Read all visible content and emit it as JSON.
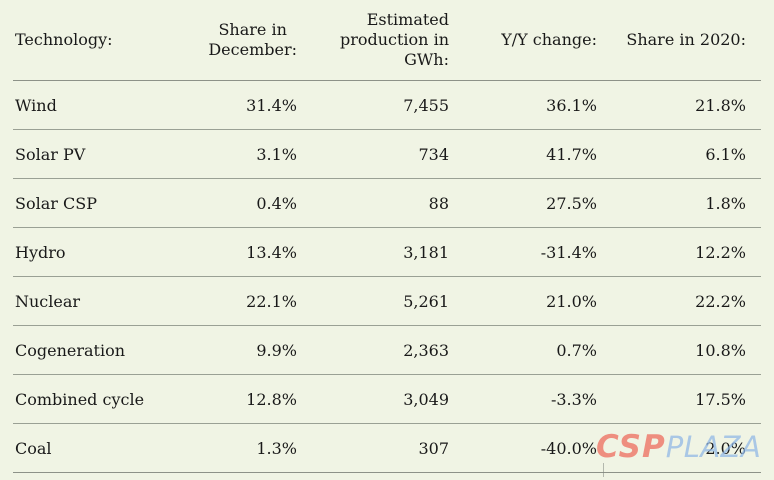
{
  "colors": {
    "background": "#f0f4e4",
    "text": "#191919",
    "header_rule": "#8d9288",
    "row_rule": "#9aa094",
    "watermark_csp": "#ee8072",
    "watermark_plaza": "#8fb6e6"
  },
  "table": {
    "columns": [
      {
        "name": "technology",
        "lines": [
          "Technology:"
        ]
      },
      {
        "name": "share_in_december",
        "lines": [
          "Share in",
          "December:"
        ]
      },
      {
        "name": "estimated_production_gwh",
        "lines": [
          "Estimated",
          "production in",
          "GWh:"
        ]
      },
      {
        "name": "yy_change",
        "lines": [
          "Y/Y change:"
        ]
      },
      {
        "name": "share_in_2020",
        "lines": [
          "Share in 2020:"
        ]
      }
    ],
    "rows": [
      {
        "cells": [
          "Wind",
          "31.4%",
          "7,455",
          "36.1%",
          "21.8%"
        ]
      },
      {
        "cells": [
          "Solar PV",
          "3.1%",
          "734",
          "41.7%",
          "6.1%"
        ]
      },
      {
        "cells": [
          "Solar CSP",
          "0.4%",
          "88",
          "27.5%",
          "1.8%"
        ]
      },
      {
        "cells": [
          "Hydro",
          "13.4%",
          "3,181",
          "-31.4%",
          "12.2%"
        ]
      },
      {
        "cells": [
          "Nuclear",
          "22.1%",
          "5,261",
          "21.0%",
          "22.2%"
        ]
      },
      {
        "cells": [
          "Cogeneration",
          "9.9%",
          "2,363",
          "0.7%",
          "10.8%"
        ]
      },
      {
        "cells": [
          "Combined cycle",
          "12.8%",
          "3,049",
          "-3.3%",
          "17.5%"
        ]
      },
      {
        "cells": [
          "Coal",
          "1.3%",
          "307",
          "-40.0%",
          "2.0%"
        ]
      }
    ]
  },
  "watermark": {
    "csp": "CSP",
    "plaza": "PLAZA"
  }
}
